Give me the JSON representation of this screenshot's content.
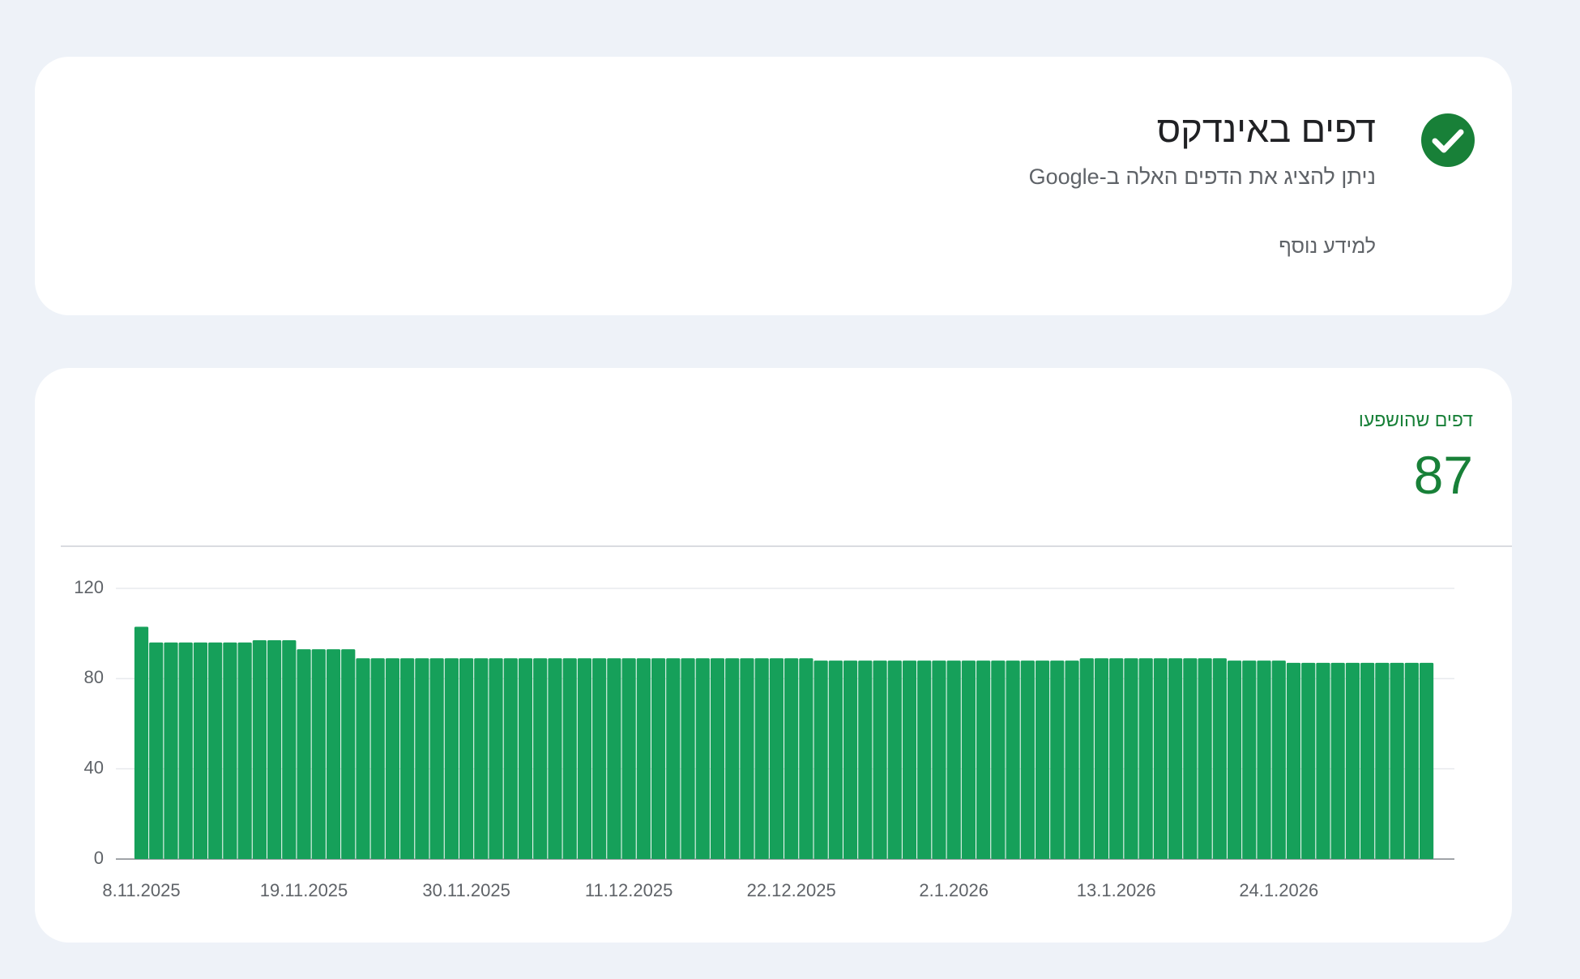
{
  "summary": {
    "title": "דפים באינדקס",
    "subtitle": "ניתן להציג את הדפים האלה ב-Google",
    "link": "למידע נוסף"
  },
  "metric": {
    "label": "דפים שהושפעו",
    "value": 87
  },
  "chart_data": {
    "type": "bar",
    "color": "#16a05a",
    "categories": [
      "8.11.2025",
      null,
      null,
      null,
      null,
      null,
      null,
      null,
      null,
      null,
      null,
      "19.11.2025",
      null,
      null,
      null,
      null,
      null,
      null,
      null,
      null,
      null,
      null,
      "30.11.2025",
      null,
      null,
      null,
      null,
      null,
      null,
      null,
      null,
      null,
      null,
      "11.12.2025",
      null,
      null,
      null,
      null,
      null,
      null,
      null,
      null,
      null,
      null,
      "22.12.2025",
      null,
      null,
      null,
      null,
      null,
      null,
      null,
      null,
      null,
      null,
      "2.1.2026",
      null,
      null,
      null,
      null,
      null,
      null,
      null,
      null,
      null,
      null,
      "13.1.2026",
      null,
      null,
      null,
      null,
      null,
      null,
      null,
      null,
      null,
      null,
      "24.1.2026",
      null,
      null,
      null,
      null,
      null,
      null,
      null,
      null,
      null,
      null
    ],
    "values": [
      103,
      96,
      96,
      96,
      96,
      96,
      96,
      96,
      97,
      97,
      97,
      93,
      93,
      93,
      93,
      89,
      89,
      89,
      89,
      89,
      89,
      89,
      89,
      89,
      89,
      89,
      89,
      89,
      89,
      89,
      89,
      89,
      89,
      89,
      89,
      89,
      89,
      89,
      89,
      89,
      89,
      89,
      89,
      89,
      89,
      89,
      88,
      88,
      88,
      88,
      88,
      88,
      88,
      88,
      88,
      88,
      88,
      88,
      88,
      88,
      88,
      88,
      88,
      88,
      89,
      89,
      89,
      89,
      89,
      89,
      89,
      89,
      89,
      89,
      88,
      88,
      88,
      88,
      87,
      87,
      87,
      87,
      87,
      87,
      87,
      87,
      87,
      87
    ],
    "ylim": [
      0,
      120
    ],
    "yticks": [
      0,
      40,
      80,
      120
    ],
    "grid": true
  }
}
